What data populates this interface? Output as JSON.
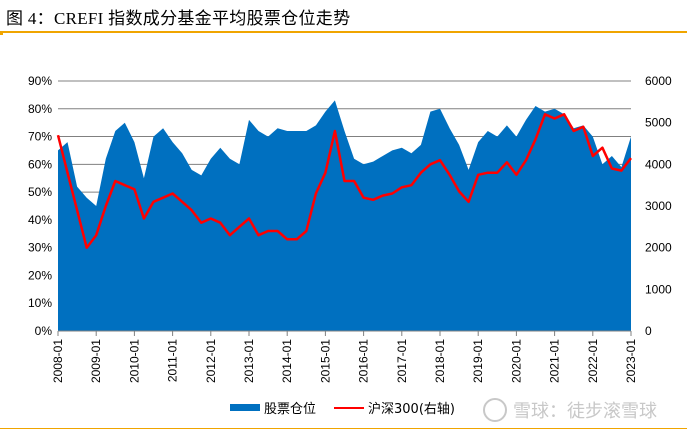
{
  "title": "图 4：CREFI 指数成分基金平均股票仓位走势",
  "watermark": "雪球：徒步滚雪球",
  "chart_data": {
    "type": "area+line",
    "title": "图 4：CREFI 指数成分基金平均股票仓位走势",
    "x_frequency": "quarterly",
    "x_start": "2008-01",
    "x_tick_labels": [
      "2008-01",
      "2009-01",
      "2010-01",
      "2011-01",
      "2012-01",
      "2013-01",
      "2014-01",
      "2015-01",
      "2016-01",
      "2017-01",
      "2018-01",
      "2019-01",
      "2020-01",
      "2021-01",
      "2022-01",
      "2023-01"
    ],
    "y_left": {
      "ticks": [
        "0%",
        "10%",
        "20%",
        "30%",
        "40%",
        "50%",
        "60%",
        "70%",
        "80%",
        "90%"
      ],
      "range": [
        0,
        90
      ]
    },
    "y_right": {
      "ticks": [
        "0",
        "1000",
        "2000",
        "3000",
        "4000",
        "5000",
        "6000"
      ],
      "range": [
        0,
        6000
      ]
    },
    "grid": true,
    "legend_position": "bottom",
    "series": [
      {
        "name": "股票仓位",
        "type": "area",
        "axis": "left",
        "color": "#0070c0",
        "values": [
          65,
          68,
          52,
          48,
          45,
          62,
          72,
          75,
          68,
          55,
          70,
          73,
          68,
          64,
          58,
          56,
          62,
          66,
          62,
          60,
          76,
          72,
          70,
          73,
          72,
          72,
          72,
          74,
          79,
          83,
          72,
          62,
          60,
          61,
          63,
          65,
          66,
          64,
          67,
          79,
          80,
          73,
          67,
          58,
          68,
          72,
          70,
          74,
          70,
          76,
          81,
          79,
          80,
          78,
          73,
          74,
          70,
          60,
          63,
          59,
          70
        ]
      },
      {
        "name": "沪深300(右轴)",
        "type": "line",
        "axis": "right",
        "color": "#ff0000",
        "values": [
          4700,
          3800,
          2900,
          2000,
          2300,
          3000,
          3600,
          3500,
          3400,
          2700,
          3100,
          3200,
          3300,
          3100,
          2900,
          2600,
          2700,
          2600,
          2300,
          2500,
          2700,
          2300,
          2400,
          2400,
          2200,
          2200,
          2400,
          3300,
          3800,
          4800,
          3600,
          3600,
          3200,
          3150,
          3250,
          3300,
          3450,
          3500,
          3800,
          4000,
          4100,
          3750,
          3350,
          3100,
          3750,
          3800,
          3800,
          4050,
          3750,
          4100,
          4600,
          5200,
          5100,
          5200,
          4800,
          4900,
          4200,
          4400,
          3900,
          3850,
          4150
        ]
      }
    ]
  }
}
